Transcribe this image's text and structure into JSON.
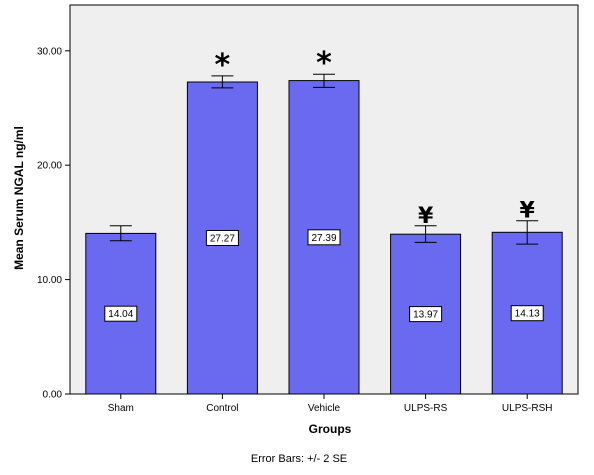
{
  "colors": {
    "plot_background": "#efefef",
    "bar_fill": "#6a6af0",
    "bar_stroke": "#000000",
    "axis": "#000000"
  },
  "chart_data": {
    "type": "bar",
    "title": "",
    "xlabel": "Groups",
    "ylabel": "Mean Serum NGAL ng/ml",
    "categories": [
      "Sham",
      "Control",
      "Vehicle",
      "ULPS-RS",
      "ULPS-RSH"
    ],
    "values": [
      14.04,
      27.27,
      27.39,
      13.97,
      14.13
    ],
    "data_labels": [
      "14.04",
      "27.27",
      "27.39",
      "13.97",
      "14.13"
    ],
    "error_bars": {
      "label": "Error Bars: +/- 2 SE",
      "lower": [
        13.4,
        26.75,
        26.8,
        13.25,
        13.1
      ],
      "upper": [
        14.7,
        27.8,
        27.95,
        14.7,
        15.15
      ]
    },
    "annotations": [
      "",
      "*",
      "*",
      "¥",
      "¥"
    ],
    "ylim": [
      0,
      34
    ],
    "yticks": [
      0,
      10,
      20,
      30
    ],
    "ytick_labels": [
      "0.00",
      "10.00",
      "20.00",
      "30.00"
    ],
    "grid": false,
    "legend": "none"
  }
}
